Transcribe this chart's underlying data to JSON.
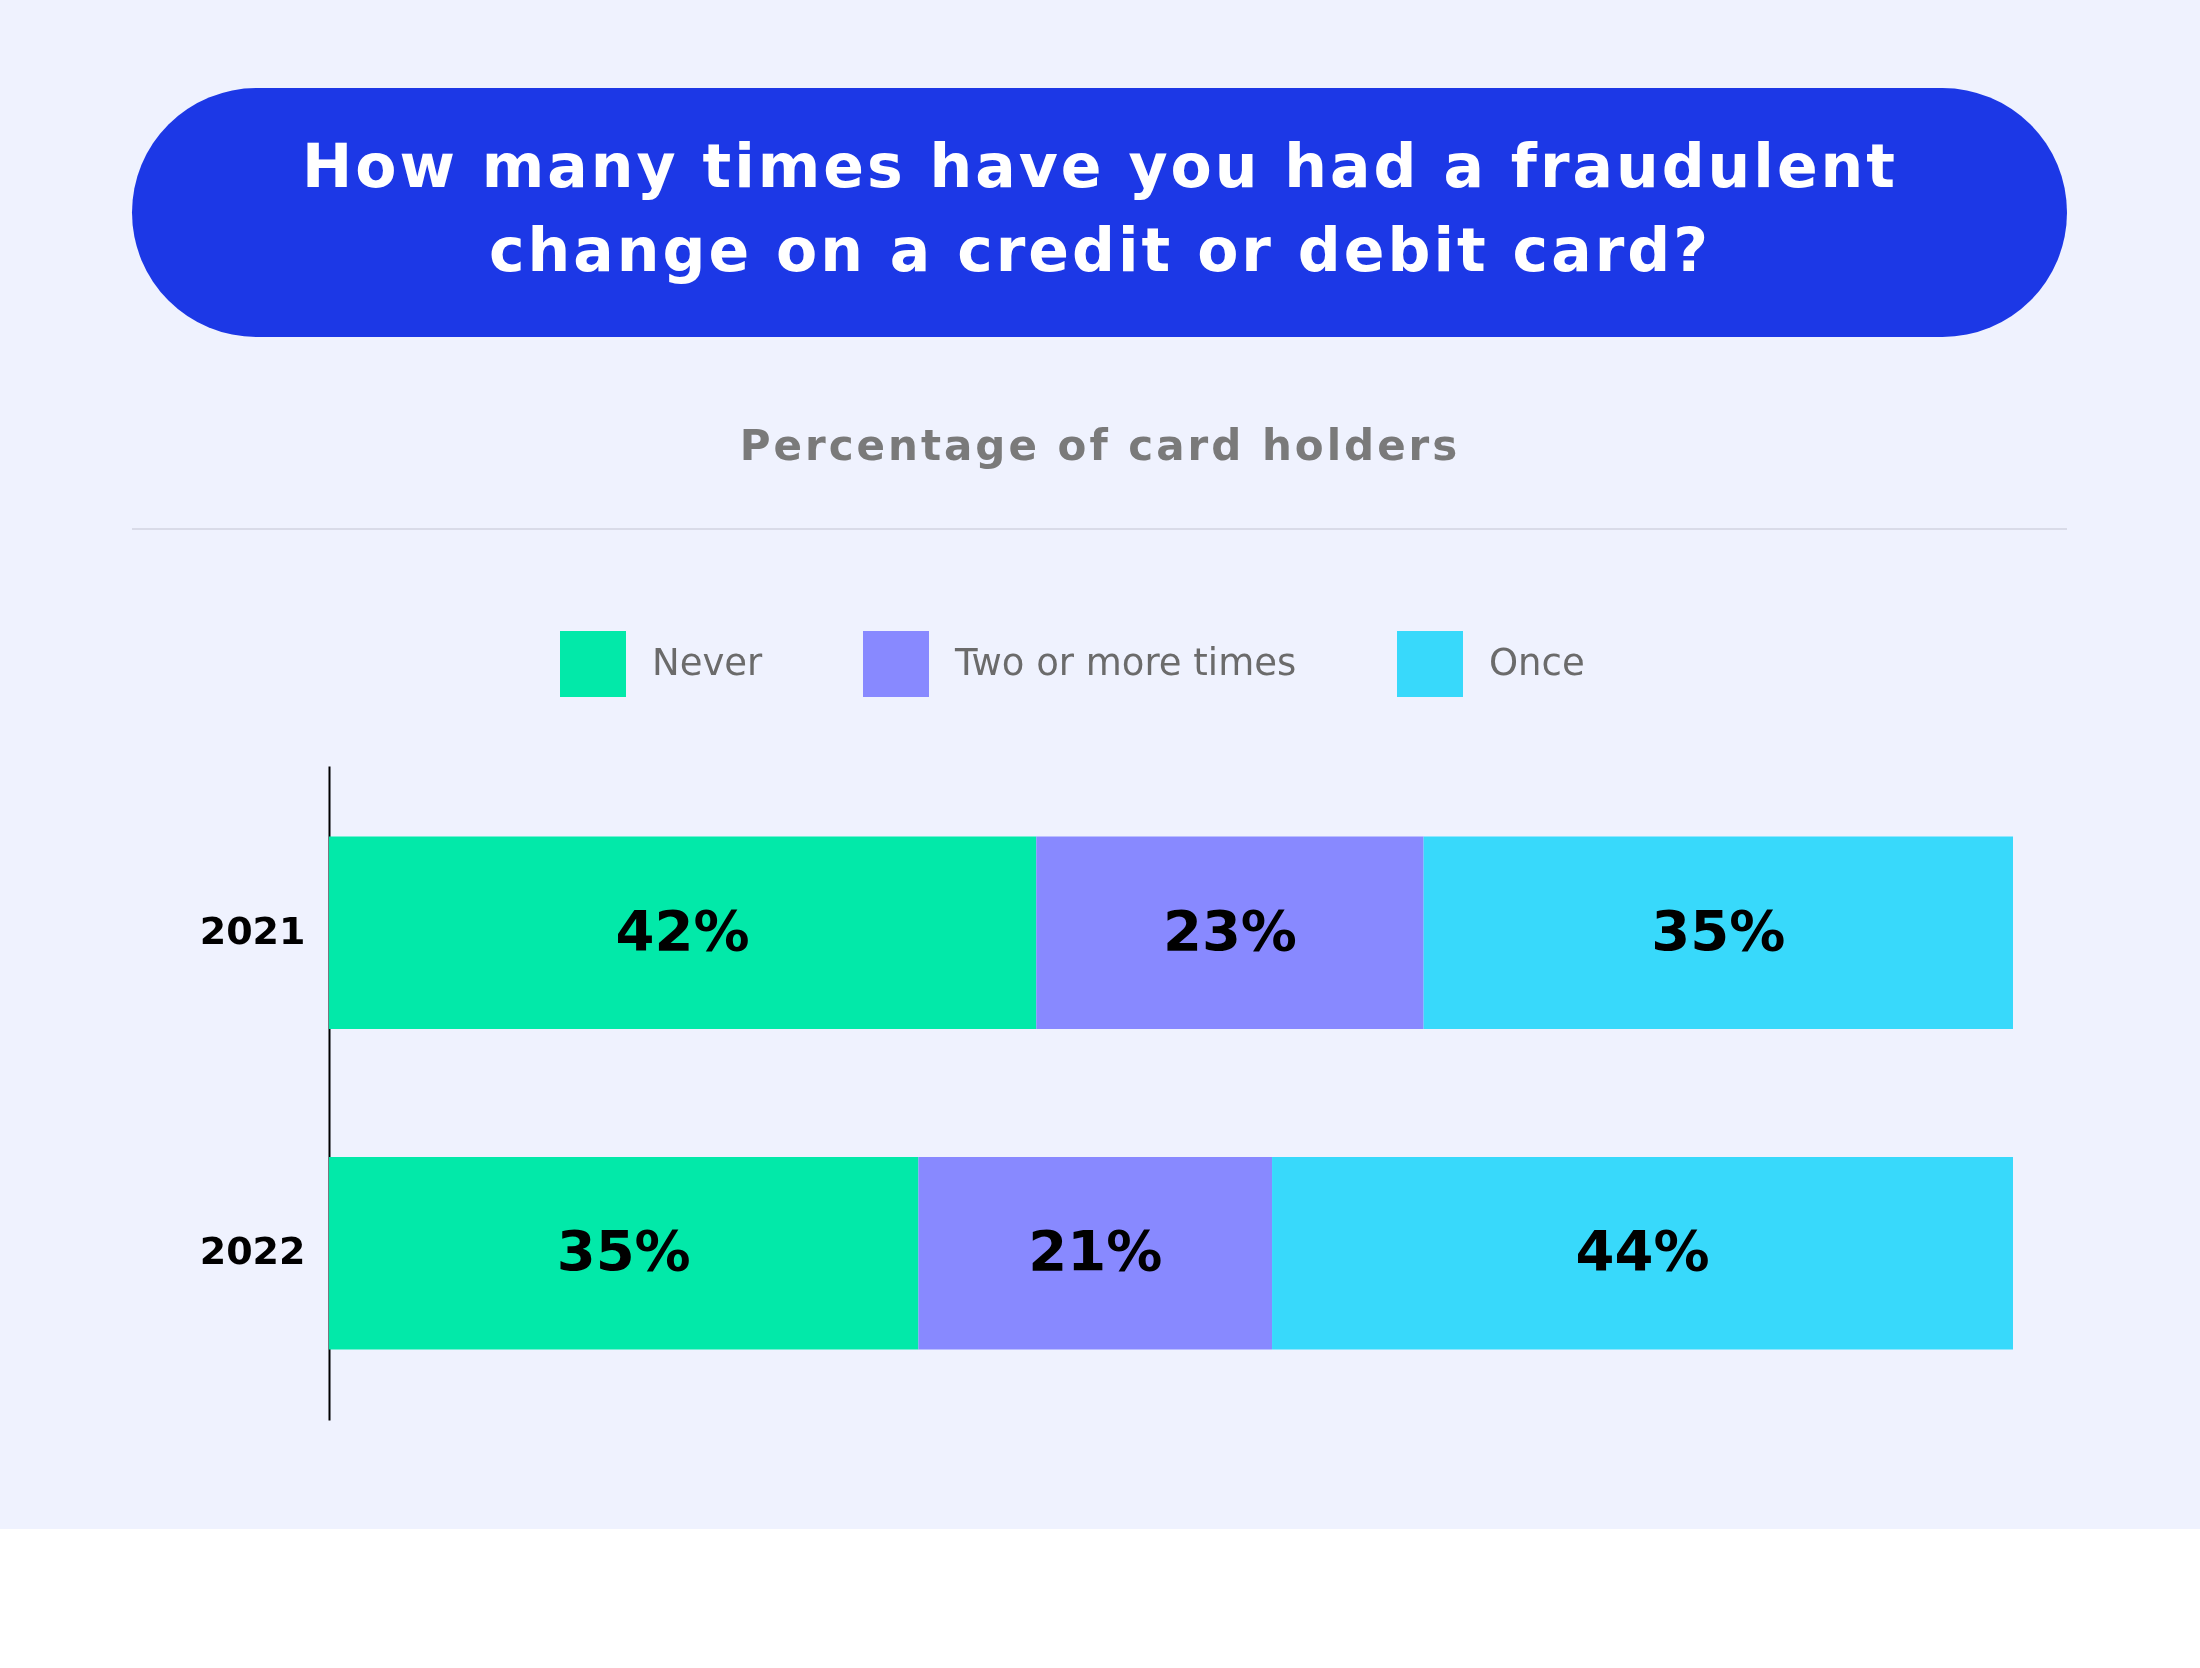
{
  "chart_data": {
    "type": "bar",
    "orientation": "horizontal",
    "stacked": true,
    "title": "How many times have you had a fraudulent change on a credit or debit card?",
    "subtitle": "Percentage of card holders",
    "categories": [
      "2021",
      "2022"
    ],
    "series": [
      {
        "name": "Never",
        "color": "#02e9a9",
        "values": [
          42,
          35
        ],
        "value_labels": [
          "42%",
          "35%"
        ]
      },
      {
        "name": "Two or more times",
        "color": "#8889ff",
        "values": [
          23,
          21
        ],
        "value_labels": [
          "23%",
          "21%"
        ]
      },
      {
        "name": "Once",
        "color": "#38d9fb",
        "values": [
          35,
          44
        ],
        "value_labels": [
          "35%",
          "44%"
        ]
      }
    ],
    "xlim": [
      0,
      100
    ],
    "tick_labels": "y",
    "legend": "top"
  }
}
